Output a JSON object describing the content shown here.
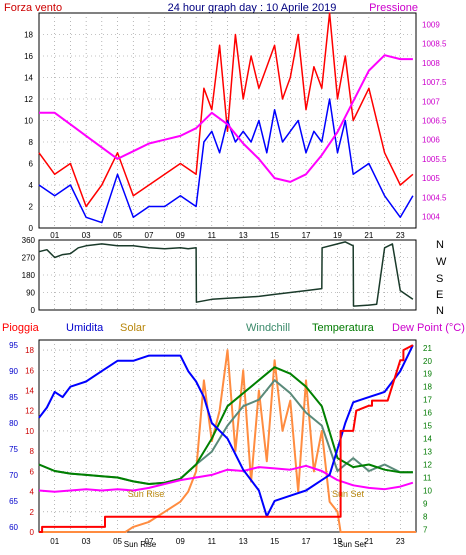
{
  "chart_data": [
    {
      "type": "line",
      "title": "24 hour graph day : 10 Aprile 2019",
      "left_label": "Forza vento",
      "right_label": "Pressione",
      "x_tick_labels": [
        "01",
        "03",
        "05",
        "07",
        "09",
        "11",
        "13",
        "15",
        "17",
        "19",
        "21",
        "23"
      ],
      "y_left_ticks": [
        "0",
        "2",
        "4",
        "6",
        "8",
        "10",
        "12",
        "14",
        "16",
        "18"
      ],
      "y_right_ticks": [
        "1004",
        "1004.5",
        "1005",
        "1005.5",
        "1006",
        "1006.5",
        "1007",
        "1007.5",
        "1008",
        "1008.5",
        "1009"
      ],
      "ylim_left": [
        0,
        20
      ],
      "ylim_right": [
        1003.7,
        1009.3
      ],
      "grid": true,
      "series": [
        {
          "color": "#ff0000",
          "axis": "left",
          "x": [
            0,
            1,
            2,
            3,
            4,
            5,
            6,
            7,
            8,
            9,
            10,
            10.5,
            11,
            11.5,
            12,
            12.5,
            13,
            13.5,
            14,
            14.5,
            15,
            15.5,
            16,
            16.5,
            17,
            17.5,
            18,
            18.5,
            19,
            19.5,
            20,
            21,
            22,
            23,
            23.8
          ],
          "y": [
            7,
            5,
            6,
            2,
            4,
            7,
            3,
            4,
            5,
            6,
            5,
            13,
            11,
            17,
            9,
            18,
            12,
            16,
            13,
            15,
            17,
            12,
            14,
            18,
            11,
            15,
            13,
            20,
            12,
            16,
            10,
            13,
            7,
            4,
            5
          ]
        },
        {
          "color": "#0000ff",
          "axis": "left",
          "x": [
            0,
            1,
            2,
            3,
            4,
            5,
            6,
            7,
            8,
            9,
            10,
            10.5,
            11,
            11.5,
            12,
            12.5,
            13,
            13.5,
            14,
            14.5,
            15,
            15.5,
            16,
            16.5,
            17,
            17.5,
            18,
            18.5,
            19,
            19.5,
            20,
            21,
            22,
            23,
            23.8
          ],
          "y": [
            4,
            3,
            4,
            1,
            0.5,
            5,
            1,
            2,
            2,
            3,
            2,
            8,
            9,
            7,
            10,
            8,
            9,
            8,
            10,
            7,
            11,
            8,
            9,
            10,
            7,
            9,
            8,
            12,
            7,
            10,
            5,
            6,
            3,
            1,
            3
          ]
        },
        {
          "color": "#ff00ff",
          "axis": "right",
          "x": [
            0,
            1,
            2,
            3,
            4,
            5,
            6,
            7,
            8,
            9,
            10,
            11,
            12,
            13,
            14,
            15,
            16,
            17,
            18,
            19,
            20,
            21,
            22,
            23,
            23.8
          ],
          "y": [
            1006.7,
            1006.7,
            1006.4,
            1006.1,
            1005.8,
            1005.5,
            1005.7,
            1005.9,
            1006.0,
            1006.1,
            1006.3,
            1006.7,
            1006.4,
            1005.9,
            1005.5,
            1005.0,
            1004.9,
            1005.1,
            1005.6,
            1006.2,
            1007.0,
            1007.8,
            1008.2,
            1008.1,
            1008.1
          ]
        }
      ]
    },
    {
      "type": "line",
      "y_left_ticks": [
        "360",
        "270",
        "180",
        "90",
        "0"
      ],
      "y_right_labels": [
        "N",
        "W",
        "S",
        "E",
        "N"
      ],
      "ylim": [
        0,
        360
      ],
      "grid": true,
      "series": [
        {
          "color": "#1a3a2a",
          "x": [
            0,
            0.5,
            1,
            1.5,
            2,
            2.5,
            3,
            4,
            5,
            6,
            7,
            8,
            9,
            9.5,
            10,
            10.02,
            11,
            12,
            13,
            14,
            15,
            16,
            17,
            17.5,
            18,
            18.02,
            19,
            19.5,
            20,
            20.02,
            21,
            21.5,
            22,
            22.5,
            23,
            23.8
          ],
          "y": [
            300,
            310,
            270,
            285,
            290,
            320,
            330,
            340,
            330,
            330,
            320,
            315,
            320,
            315,
            320,
            40,
            55,
            60,
            65,
            70,
            80,
            90,
            100,
            105,
            110,
            320,
            340,
            350,
            330,
            20,
            25,
            30,
            320,
            340,
            100,
            55
          ]
        }
      ]
    },
    {
      "type": "line",
      "header_labels": [
        "Pioggia",
        "Umidita",
        "Solar",
        "Windchill",
        "Temperatura",
        "Dew Point (°C)"
      ],
      "y_left_ticks": [
        "60",
        "65",
        "70",
        "75",
        "80",
        "85",
        "90",
        "95"
      ],
      "y_mid_ticks": [
        "0",
        "2",
        "4",
        "6",
        "8",
        "10",
        "12",
        "14",
        "16",
        "18"
      ],
      "y_right_ticks": [
        "7",
        "8",
        "9",
        "10",
        "11",
        "12",
        "13",
        "14",
        "15",
        "16",
        "17",
        "18",
        "19",
        "20",
        "21"
      ],
      "ylim_left": [
        59,
        96
      ],
      "ylim_mid": [
        0,
        19
      ],
      "ylim_right": [
        6.8,
        21.6
      ],
      "annotations": [
        "Sun Rise",
        "Sun Rise",
        "Sun Set",
        "Sun Set"
      ],
      "grid": true,
      "series": [
        {
          "name": "Umidita",
          "color": "#0000ff",
          "axis": "left",
          "x": [
            0,
            0.5,
            1,
            1.5,
            2,
            3,
            4,
            5,
            6,
            7,
            8,
            9,
            9.5,
            10,
            10.5,
            11,
            12,
            13,
            14,
            14.5,
            15,
            16,
            17,
            18,
            18.5,
            19,
            19.5,
            20,
            21,
            22,
            23,
            23.8
          ],
          "y": [
            81,
            83,
            86,
            85,
            87,
            88,
            90,
            92,
            92,
            93,
            93,
            93,
            90,
            88,
            85,
            80,
            77,
            71,
            67,
            62,
            65,
            66,
            67,
            69,
            70,
            75,
            80,
            84,
            85,
            86,
            90,
            95
          ]
        },
        {
          "name": "Temperatura",
          "color": "#008000",
          "axis": "right",
          "x": [
            0,
            1,
            2,
            3,
            4,
            5,
            6,
            7,
            8,
            9,
            10,
            11,
            12,
            13,
            14,
            15,
            16,
            17,
            18,
            19,
            20,
            21,
            22,
            23,
            23.8
          ],
          "y": [
            12.0,
            11.5,
            11.3,
            11.2,
            11.1,
            11.0,
            10.7,
            10.5,
            10.6,
            10.9,
            12.0,
            14.0,
            16.5,
            17.5,
            18.5,
            19.5,
            19.0,
            18.0,
            16.5,
            12.5,
            11.8,
            12.0,
            11.6,
            11.4,
            11.4
          ]
        },
        {
          "name": "Windchill",
          "color": "#5a8a7a",
          "axis": "right",
          "x": [
            0,
            1,
            2,
            3,
            4,
            5,
            6,
            7,
            8,
            9,
            10,
            11,
            12,
            13,
            14,
            15,
            16,
            17,
            18,
            19,
            20,
            21,
            22,
            23,
            23.8
          ],
          "y": [
            12.0,
            11.5,
            11.3,
            11.2,
            11.1,
            11.0,
            10.7,
            10.5,
            10.6,
            10.9,
            12.0,
            13.0,
            15.0,
            16.5,
            17.0,
            18.5,
            17.5,
            16.0,
            15.0,
            11.5,
            12.5,
            11.5,
            12.0,
            11.4,
            11.4
          ]
        },
        {
          "name": "Dew Point",
          "color": "#ff00ff",
          "axis": "right",
          "x": [
            0,
            1,
            2,
            3,
            4,
            5,
            6,
            7,
            8,
            9,
            10,
            11,
            12,
            13,
            14,
            15,
            16,
            17,
            18,
            19,
            20,
            21,
            22,
            23,
            23.8
          ],
          "y": [
            10.0,
            9.9,
            10.0,
            10.1,
            10.0,
            10.1,
            10.0,
            10.2,
            10.5,
            10.8,
            11.0,
            11.2,
            11.6,
            11.5,
            11.8,
            11.7,
            11.6,
            11.9,
            11.5,
            10.8,
            10.4,
            10.2,
            10.1,
            10.3,
            10.6
          ]
        },
        {
          "name": "Solar",
          "color": "#ff8c40",
          "axis": "mid",
          "x": [
            0,
            5.5,
            6,
            7,
            8,
            9,
            9.5,
            10,
            10.5,
            11,
            11.5,
            12,
            12.5,
            13,
            13.5,
            14,
            14.5,
            15,
            15.5,
            16,
            16.5,
            17,
            17.5,
            18,
            18.5,
            19,
            19.2,
            24
          ],
          "y": [
            0,
            0,
            0.5,
            1,
            2,
            3,
            4,
            6,
            15,
            9,
            12,
            18,
            8,
            16,
            5,
            14,
            7,
            17,
            10,
            13,
            4,
            15,
            6,
            10,
            3,
            2,
            0,
            0
          ]
        },
        {
          "name": "Pioggia",
          "color": "#ff0000",
          "axis": "mid",
          "x": [
            0,
            0.2,
            0.2,
            3,
            4,
            4.2,
            4.2,
            9,
            19,
            19.2,
            19.2,
            20,
            20.2,
            20.2,
            21,
            21.2,
            21.2,
            22,
            22.2,
            22.2,
            23,
            23.2,
            23.2,
            23.8
          ],
          "y": [
            0,
            0,
            0.5,
            0.5,
            0.5,
            0.5,
            1.5,
            1.5,
            1.5,
            1.5,
            10,
            10,
            12,
            12,
            12.5,
            12.5,
            13,
            13,
            13,
            13,
            17,
            17,
            18,
            18.5
          ]
        }
      ]
    }
  ]
}
